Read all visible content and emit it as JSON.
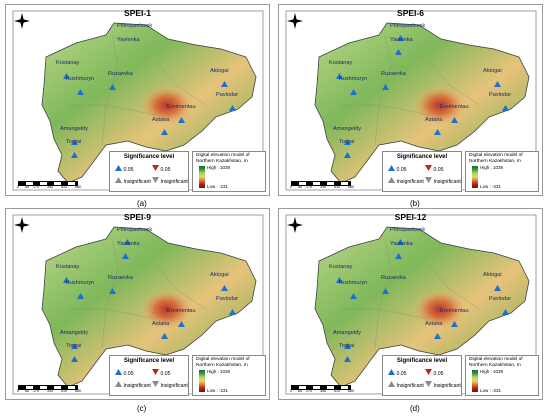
{
  "panels": [
    {
      "title": "SPEI-1",
      "caption": "(a)",
      "arrows": {
        "Petropavlovsk": "none",
        "Yavlenka": "none",
        "Kostanay": "up",
        "Kushmuryn": "up",
        "Ruzaevka": "up",
        "Aktogai": "up",
        "Pavlodar": "up",
        "Eremientau": "up",
        "Astana": "up",
        "Amangeldy": "up",
        "Torgai": "up"
      }
    },
    {
      "title": "SPEI-6",
      "caption": "(b)",
      "arrows": {
        "Petropavlovsk": "up",
        "Yavlenka": "up",
        "Kostanay": "up",
        "Kushmuryn": "up",
        "Ruzaevka": "up",
        "Aktogai": "up",
        "Pavlodar": "up",
        "Eremientau": "up",
        "Astana": "up",
        "Amangeldy": "up",
        "Torgai": "up"
      }
    },
    {
      "title": "SPEI-9",
      "caption": "(c)",
      "arrows": {
        "Petropavlovsk": "up",
        "Yavlenka": "up",
        "Kostanay": "up",
        "Kushmuryn": "up",
        "Ruzaevka": "up",
        "Aktogai": "up",
        "Pavlodar": "up",
        "Eremientau": "up",
        "Astana": "up",
        "Amangeldy": "up",
        "Torgai": "up"
      }
    },
    {
      "title": "SPEI-12",
      "caption": "(d)",
      "arrows": {
        "Petropavlovsk": "up",
        "Yavlenka": "up",
        "Kostanay": "up",
        "Kushmuryn": "up",
        "Ruzaevka": "up",
        "Aktogai": "up",
        "Pavlodar": "up",
        "Eremientau": "up",
        "Astana": "up",
        "Amangeldy": "up",
        "Torgai": "up"
      }
    }
  ],
  "cities": {
    "Petropavlovsk": "Petropavlovsk",
    "Yavlenka": "Yavlenka",
    "Kostanay": "Kostanay",
    "Kushmuryn": "Kushmuryn",
    "Ruzaevka": "Ruzaevka",
    "Aktogai": "Aktogai",
    "Pavlodar": "Pavlodar",
    "Eremientau": "Ereimentau",
    "Astana": "Astana",
    "Amangeldy": "Amangeldy",
    "Torgai": "Torgai"
  },
  "legend": {
    "title": "Significance level",
    "item1": "0.05",
    "item2": "0.05",
    "item3": "Insignificant",
    "item4": "Insignificant"
  },
  "dem": {
    "title": "Digital elevation model of Northern Kazakhstan, m",
    "high": "High : 1039",
    "low": "Low : -231"
  },
  "scale": [
    "0",
    "85",
    "170",
    "340",
    "510",
    "680"
  ],
  "colors": {
    "up_sig": "#1f6fd1",
    "down_sig": "#cc1f1f",
    "insig": "#8a8a8a"
  }
}
